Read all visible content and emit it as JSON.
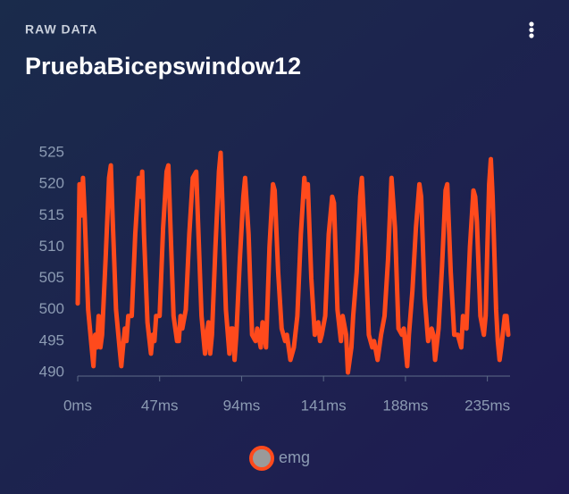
{
  "chart_data": {
    "type": "line",
    "subtitle": "RAW DATA",
    "title": "PruebaBicepswindow12",
    "x": [
      0,
      1,
      2,
      3,
      4,
      6,
      8,
      9,
      10,
      11,
      12,
      13,
      14,
      16,
      18,
      19,
      20,
      22,
      24,
      25,
      26,
      27,
      28,
      29,
      31,
      33,
      35,
      36,
      37,
      38,
      40,
      42,
      43,
      44,
      45,
      47,
      49,
      51,
      52,
      53,
      55,
      57,
      58,
      59,
      60,
      62,
      64,
      66,
      68,
      69,
      71,
      73,
      74,
      75,
      76,
      77,
      79,
      81,
      82,
      83,
      85,
      87,
      88,
      89,
      90,
      91,
      93,
      95,
      96,
      98,
      100,
      102,
      103,
      105,
      106,
      108,
      110,
      112,
      113,
      115,
      117,
      119,
      120,
      122,
      124,
      126,
      128,
      130,
      131,
      132,
      134,
      136,
      138,
      139,
      140,
      142,
      144,
      146,
      147,
      149,
      151,
      152,
      154,
      155,
      157,
      158,
      160,
      162,
      163,
      165,
      167,
      169,
      170,
      172,
      174,
      176,
      178,
      180,
      182,
      184,
      186,
      187,
      189,
      190,
      192,
      194,
      196,
      197,
      199,
      201,
      203,
      204,
      205,
      207,
      209,
      211,
      212,
      214,
      216,
      218,
      220,
      221,
      223,
      225,
      227,
      228,
      229,
      231,
      233,
      234,
      235,
      236,
      237,
      238,
      240,
      241,
      242,
      243,
      245,
      246,
      247
    ],
    "series": [
      {
        "name": "emg",
        "color": "#ff4a1c",
        "values": [
          501,
          520,
          515,
          521,
          515,
          500,
          494,
          491,
          496,
          494,
          499,
          494,
          496,
          508,
          521,
          523,
          515,
          500,
          494,
          491,
          494,
          497,
          495,
          499,
          499,
          512,
          521,
          518,
          522,
          512,
          498,
          493,
          496,
          495,
          499,
          499,
          513,
          522,
          523,
          515,
          499,
          495,
          495,
          499,
          497,
          500,
          512,
          521,
          522,
          514,
          499,
          493,
          496,
          498,
          493,
          496,
          510,
          522,
          525,
          517,
          500,
          493,
          497,
          497,
          492,
          496,
          508,
          518,
          521,
          512,
          496,
          495,
          497,
          494,
          498,
          494,
          510,
          520,
          519,
          506,
          497,
          495,
          496,
          492,
          494,
          499,
          512,
          521,
          518,
          520,
          505,
          496,
          498,
          495,
          496,
          499,
          512,
          518,
          517,
          500,
          495,
          499,
          496,
          490,
          494,
          499,
          506,
          518,
          521,
          510,
          496,
          494,
          495,
          492,
          496,
          499,
          508,
          521,
          513,
          497,
          496,
          497,
          491,
          496,
          503,
          513,
          520,
          518,
          502,
          495,
          497,
          496,
          492,
          497,
          507,
          519,
          520,
          506,
          496,
          496,
          494,
          499,
          497,
          510,
          519,
          518,
          514,
          499,
          496,
          499,
          510,
          520,
          524,
          518,
          500,
          495,
          492,
          494,
          499,
          499,
          496
        ]
      }
    ],
    "xlim": [
      0,
      248
    ],
    "ylim": [
      489,
      526
    ],
    "xticks": [
      {
        "value": 0,
        "label": "0ms"
      },
      {
        "value": 47,
        "label": "47ms"
      },
      {
        "value": 94,
        "label": "94ms"
      },
      {
        "value": 141,
        "label": "141ms"
      },
      {
        "value": 188,
        "label": "188ms"
      },
      {
        "value": 235,
        "label": "235ms"
      }
    ],
    "yticks": [
      490,
      495,
      500,
      505,
      510,
      515,
      520,
      525
    ]
  }
}
